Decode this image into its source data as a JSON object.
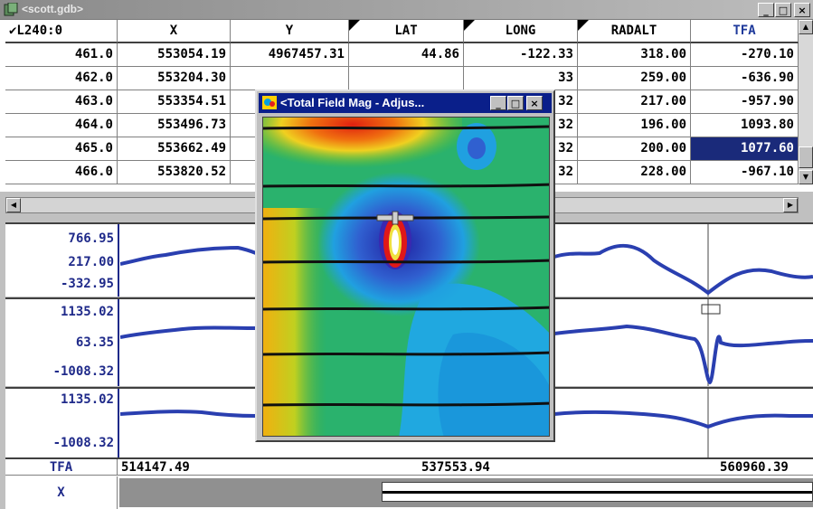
{
  "window": {
    "title": "<scott.gdb>",
    "icon": "database-icon",
    "buttons": [
      "_",
      "□",
      "×"
    ]
  },
  "table": {
    "columns": [
      "✔L240:0",
      "X",
      "Y",
      "LAT",
      "LONG",
      "RADALT",
      "TFA"
    ],
    "flagged_columns": [
      3,
      4,
      5
    ],
    "rows": [
      [
        "461.0",
        "553054.19",
        "4967457.31",
        "44.86",
        "-122.33",
        "318.00",
        "-270.10"
      ],
      [
        "462.0",
        "553204.30",
        "",
        "",
        "33",
        "259.00",
        "-636.90"
      ],
      [
        "463.0",
        "553354.51",
        "",
        "",
        "32",
        "217.00",
        "-957.90"
      ],
      [
        "464.0",
        "553496.73",
        "",
        "",
        "32",
        "196.00",
        "1093.80"
      ],
      [
        "465.0",
        "553662.49",
        "",
        "",
        "32",
        "200.00",
        "1077.60"
      ],
      [
        "466.0",
        "553820.52",
        "",
        "",
        "32",
        "228.00",
        "-967.10"
      ]
    ],
    "selected_cell": {
      "row": 4,
      "col": 6
    }
  },
  "panels": [
    {
      "labels": [
        "766.95",
        "217.00",
        "-332.95"
      ]
    },
    {
      "labels": [
        "1135.02",
        "63.35",
        "-1008.32"
      ]
    },
    {
      "labels": [
        "1135.02",
        "",
        "-1008.32"
      ]
    }
  ],
  "footer": {
    "channel": "TFA",
    "x_label": "X",
    "ticks": [
      "514147.49",
      "537553.94",
      "560960.39"
    ]
  },
  "inner_window": {
    "title": "<Total Field Mag - Adjus...",
    "icon": "map-icon",
    "buttons": [
      "_",
      "□",
      "×"
    ]
  },
  "colors": {
    "plot_line": "#2a3fb0",
    "title_active": "#0a1f8a",
    "selection": "#1a2a7a"
  }
}
